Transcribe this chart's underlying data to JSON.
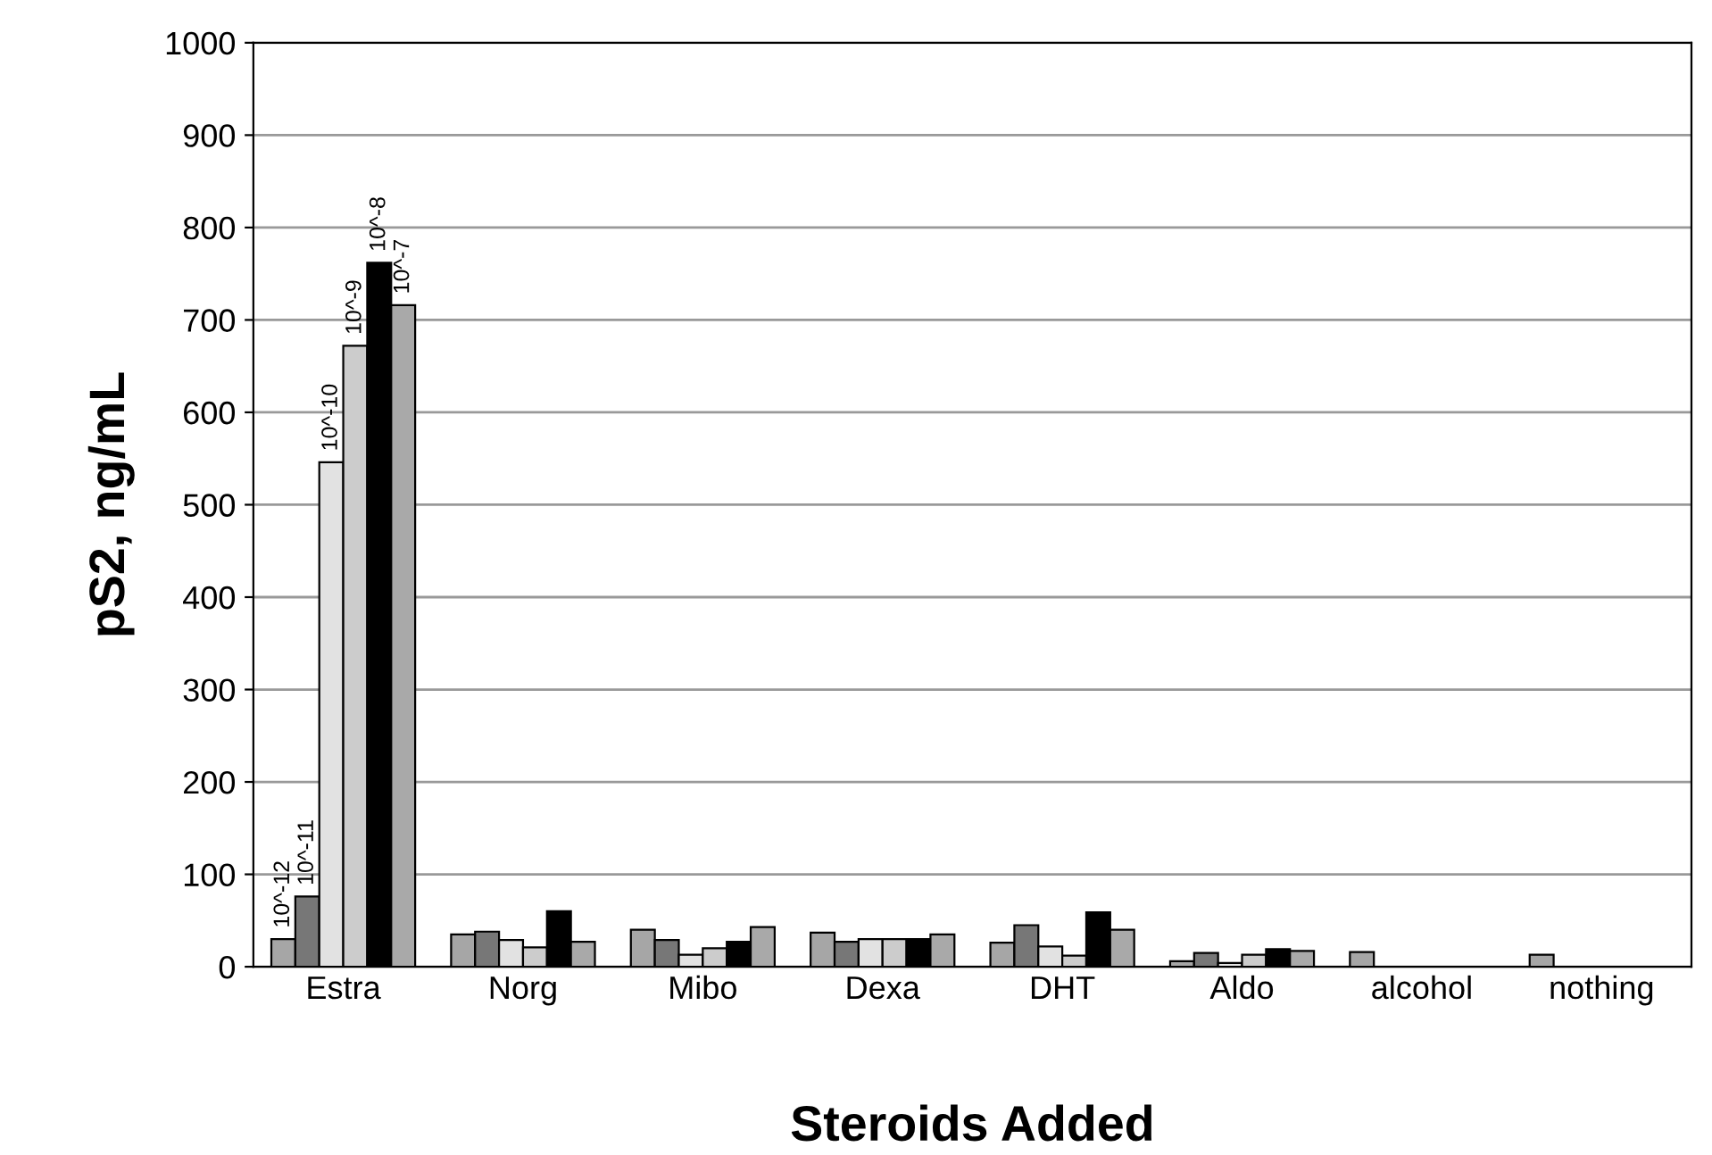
{
  "chart_data": {
    "type": "bar",
    "xlabel": "Steroids Added",
    "ylabel": "pS2, ng/mL",
    "categories": [
      "Estra",
      "Norg",
      "Mibo",
      "Dexa",
      "DHT",
      "Aldo",
      "alcohol",
      "nothing"
    ],
    "series": [
      {
        "name": "10^-12",
        "color": "#a6a6a6",
        "values": [
          30,
          35,
          40,
          37,
          26,
          6,
          16,
          13
        ]
      },
      {
        "name": "10^-11",
        "color": "#777777",
        "values": [
          76,
          38,
          29,
          27,
          45,
          15,
          null,
          null
        ]
      },
      {
        "name": "10^-10",
        "color": "#e2e2e2",
        "values": [
          546,
          29,
          13,
          30,
          22,
          4,
          null,
          null
        ]
      },
      {
        "name": "10^-9",
        "color": "#cccccc",
        "values": [
          672,
          21,
          20,
          30,
          12,
          13,
          null,
          null
        ]
      },
      {
        "name": "10^-8",
        "color": "#000000",
        "values": [
          762,
          60,
          27,
          30,
          59,
          19,
          null,
          null
        ]
      },
      {
        "name": "10^-7",
        "color": "#a9a9a9",
        "values": [
          716,
          27,
          43,
          35,
          40,
          17,
          null,
          null
        ]
      }
    ],
    "ylim": [
      0,
      1000
    ],
    "yticks": [
      0,
      100,
      200,
      300,
      400,
      500,
      600,
      700,
      800,
      900,
      1000
    ],
    "grid": "y",
    "legend": false
  }
}
